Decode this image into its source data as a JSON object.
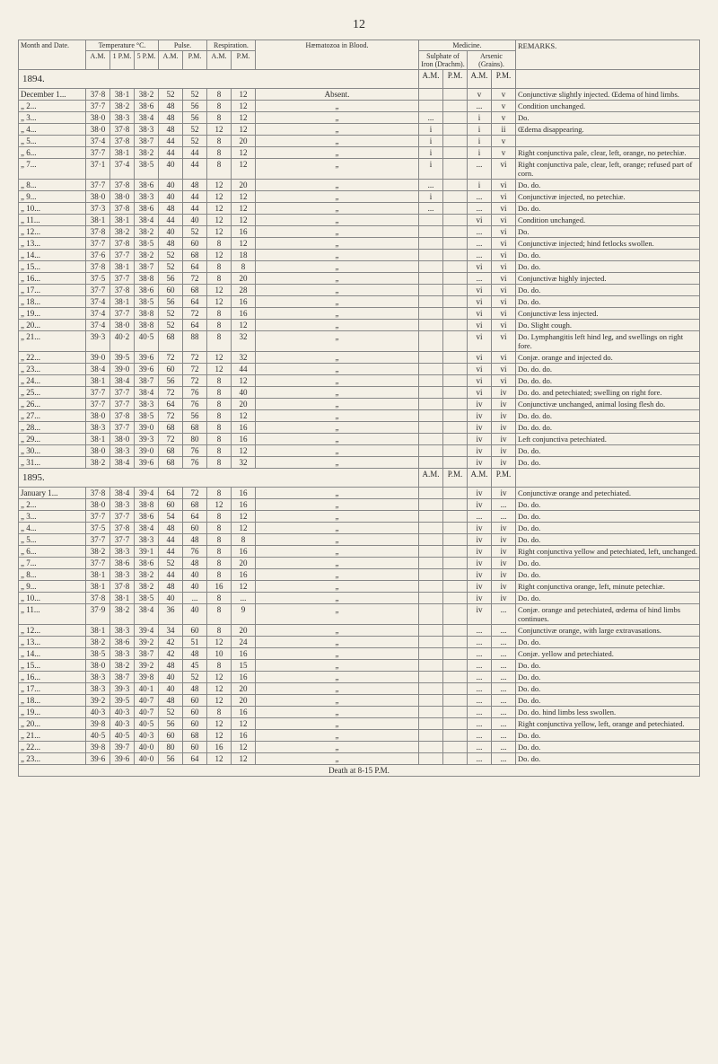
{
  "pagenum": "12",
  "headers": {
    "month": "Month and Date.",
    "temp": "Temperature °C.",
    "pulse": "Pulse.",
    "resp": "Respiration.",
    "haem": "Hæmatozoa in Blood.",
    "med": "Medicine.",
    "sulph": "Sulphate of Iron (Drachm).",
    "ars": "Arsenic (Grains).",
    "rem": "REMARKS.",
    "am": "A.M.",
    "pm1": "1 P.M.",
    "pm5": "5 P.M.",
    "pm": "P.M."
  },
  "year1": "1894.",
  "year2": "1895.",
  "rows1": [
    {
      "d": "December 1...",
      "t": [
        "37·8",
        "38·1",
        "38·2"
      ],
      "p": [
        "52",
        "52"
      ],
      "r": [
        "8",
        "12"
      ],
      "h": "Absent.",
      "s": "",
      "a": "v",
      "g": "v",
      "rem": "Conjunctivæ slightly injected. Œdema of hind limbs."
    },
    {
      "d": "„ 2...",
      "t": [
        "37·7",
        "38·2",
        "38·6"
      ],
      "p": [
        "48",
        "56"
      ],
      "r": [
        "8",
        "12"
      ],
      "h": "„",
      "s": "",
      "a": "...",
      "g": "v",
      "rem": "Condition unchanged."
    },
    {
      "d": "„ 3...",
      "t": [
        "38·0",
        "38·3",
        "38·4"
      ],
      "p": [
        "48",
        "56"
      ],
      "r": [
        "8",
        "12"
      ],
      "h": "„",
      "s": "...",
      "a": "i",
      "g": "v",
      "rem": "Do."
    },
    {
      "d": "„ 4...",
      "t": [
        "38·0",
        "37·8",
        "38·3"
      ],
      "p": [
        "48",
        "52"
      ],
      "r": [
        "12",
        "12"
      ],
      "h": "„",
      "s": "i",
      "a": "i",
      "g": "ii",
      "rem": "Œdema disappearing."
    },
    {
      "d": "„ 5...",
      "t": [
        "37·4",
        "37·8",
        "38·7"
      ],
      "p": [
        "44",
        "52"
      ],
      "r": [
        "8",
        "20"
      ],
      "h": "„",
      "s": "i",
      "a": "i",
      "g": "v",
      "rem": ""
    },
    {
      "d": "„ 6...",
      "t": [
        "37·7",
        "38·1",
        "38·2"
      ],
      "p": [
        "44",
        "44"
      ],
      "r": [
        "8",
        "12"
      ],
      "h": "„",
      "s": "i",
      "a": "i",
      "g": "v",
      "rem": "Right conjunctiva pale, clear, left, orange, no petechiæ."
    },
    {
      "d": "„ 7...",
      "t": [
        "37·1",
        "37·4",
        "38·5"
      ],
      "p": [
        "40",
        "44"
      ],
      "r": [
        "8",
        "12"
      ],
      "h": "„",
      "s": "i",
      "a": "...",
      "g": "vi",
      "rem": "Right conjunctiva pale, clear, left, orange; refused part of corn."
    },
    {
      "d": "„ 8...",
      "t": [
        "37·7",
        "37·8",
        "38·6"
      ],
      "p": [
        "40",
        "48"
      ],
      "r": [
        "12",
        "20"
      ],
      "h": "„",
      "s": "...",
      "a": "i",
      "g": "vi",
      "rem": "Do. do."
    },
    {
      "d": "„ 9...",
      "t": [
        "38·0",
        "38·0",
        "38·3"
      ],
      "p": [
        "40",
        "44"
      ],
      "r": [
        "12",
        "12"
      ],
      "h": "„",
      "s": "i",
      "a": "...",
      "g": "vi",
      "rem": "Conjunctivæ injected, no petechiæ."
    },
    {
      "d": "„ 10...",
      "t": [
        "37·3",
        "37·8",
        "38·6"
      ],
      "p": [
        "48",
        "44"
      ],
      "r": [
        "12",
        "12"
      ],
      "h": "„",
      "s": "...",
      "a": "...",
      "g": "vi",
      "rem": "Do. do."
    },
    {
      "d": "„ 11...",
      "t": [
        "38·1",
        "38·1",
        "38·4"
      ],
      "p": [
        "44",
        "40"
      ],
      "r": [
        "12",
        "12"
      ],
      "h": "„",
      "s": "",
      "a": "vi",
      "g": "vi",
      "rem": "Condition unchanged."
    },
    {
      "d": "„ 12...",
      "t": [
        "37·8",
        "38·2",
        "38·2"
      ],
      "p": [
        "40",
        "52"
      ],
      "r": [
        "12",
        "16"
      ],
      "h": "„",
      "s": "",
      "a": "...",
      "g": "vi",
      "rem": "Do."
    },
    {
      "d": "„ 13...",
      "t": [
        "37·7",
        "37·8",
        "38·5"
      ],
      "p": [
        "48",
        "60"
      ],
      "r": [
        "8",
        "12"
      ],
      "h": "„",
      "s": "",
      "a": "...",
      "g": "vi",
      "rem": "Conjunctivæ injected; hind fetlocks swollen."
    },
    {
      "d": "„ 14...",
      "t": [
        "37·6",
        "37·7",
        "38·2"
      ],
      "p": [
        "52",
        "68"
      ],
      "r": [
        "12",
        "18"
      ],
      "h": "„",
      "s": "",
      "a": "...",
      "g": "vi",
      "rem": "Do. do."
    },
    {
      "d": "„ 15...",
      "t": [
        "37·8",
        "38·1",
        "38·7"
      ],
      "p": [
        "52",
        "64"
      ],
      "r": [
        "8",
        "8"
      ],
      "h": "„",
      "s": "",
      "a": "vi",
      "g": "vi",
      "rem": "Do. do."
    },
    {
      "d": "„ 16...",
      "t": [
        "37·5",
        "37·7",
        "38·8"
      ],
      "p": [
        "56",
        "72"
      ],
      "r": [
        "8",
        "20"
      ],
      "h": "„",
      "s": "",
      "a": "...",
      "g": "vi",
      "rem": "Conjunctivæ highly injected."
    },
    {
      "d": "„ 17...",
      "t": [
        "37·7",
        "37·8",
        "38·6"
      ],
      "p": [
        "60",
        "68"
      ],
      "r": [
        "12",
        "28"
      ],
      "h": "„",
      "s": "",
      "a": "vi",
      "g": "vi",
      "rem": "Do. do."
    },
    {
      "d": "„ 18...",
      "t": [
        "37·4",
        "38·1",
        "38·5"
      ],
      "p": [
        "56",
        "64"
      ],
      "r": [
        "12",
        "16"
      ],
      "h": "„",
      "s": "",
      "a": "vi",
      "g": "vi",
      "rem": "Do. do."
    },
    {
      "d": "„ 19...",
      "t": [
        "37·4",
        "37·7",
        "38·8"
      ],
      "p": [
        "52",
        "72"
      ],
      "r": [
        "8",
        "16"
      ],
      "h": "„",
      "s": "",
      "a": "vi",
      "g": "vi",
      "rem": "Conjunctivæ less injected."
    },
    {
      "d": "„ 20...",
      "t": [
        "37·4",
        "38·0",
        "38·8"
      ],
      "p": [
        "52",
        "64"
      ],
      "r": [
        "8",
        "12"
      ],
      "h": "„",
      "s": "",
      "a": "vi",
      "g": "vi",
      "rem": "Do. Slight cough."
    },
    {
      "d": "„ 21...",
      "t": [
        "39·3",
        "40·2",
        "40·5"
      ],
      "p": [
        "68",
        "88"
      ],
      "r": [
        "8",
        "32"
      ],
      "h": "„",
      "s": "",
      "a": "vi",
      "g": "vi",
      "rem": "Do. Lymphangitis left hind leg, and swellings on right fore."
    },
    {
      "d": "„ 22...",
      "t": [
        "39·0",
        "39·5",
        "39·6"
      ],
      "p": [
        "72",
        "72"
      ],
      "r": [
        "12",
        "32"
      ],
      "h": "„",
      "s": "",
      "a": "vi",
      "g": "vi",
      "rem": "Conjæ. orange and injected do."
    },
    {
      "d": "„ 23...",
      "t": [
        "38·4",
        "39·0",
        "39·6"
      ],
      "p": [
        "60",
        "72"
      ],
      "r": [
        "12",
        "44"
      ],
      "h": "„",
      "s": "",
      "a": "vi",
      "g": "vi",
      "rem": "Do. do. do."
    },
    {
      "d": "„ 24...",
      "t": [
        "38·1",
        "38·4",
        "38·7"
      ],
      "p": [
        "56",
        "72"
      ],
      "r": [
        "8",
        "12"
      ],
      "h": "„",
      "s": "",
      "a": "vi",
      "g": "vi",
      "rem": "Do. do. do."
    },
    {
      "d": "„ 25...",
      "t": [
        "37·7",
        "37·7",
        "38·4"
      ],
      "p": [
        "72",
        "76"
      ],
      "r": [
        "8",
        "40"
      ],
      "h": "„",
      "s": "",
      "a": "vi",
      "g": "iv",
      "rem": "Do. do. and petechiated; swelling on right fore."
    },
    {
      "d": "„ 26...",
      "t": [
        "37·7",
        "37·7",
        "38·3"
      ],
      "p": [
        "64",
        "76"
      ],
      "r": [
        "8",
        "20"
      ],
      "h": "„",
      "s": "",
      "a": "iv",
      "g": "iv",
      "rem": "Conjunctivæ unchanged, animal losing flesh do."
    },
    {
      "d": "„ 27...",
      "t": [
        "38·0",
        "37·8",
        "38·5"
      ],
      "p": [
        "72",
        "56"
      ],
      "r": [
        "8",
        "12"
      ],
      "h": "„",
      "s": "",
      "a": "iv",
      "g": "iv",
      "rem": "Do. do. do."
    },
    {
      "d": "„ 28...",
      "t": [
        "38·3",
        "37·7",
        "39·0"
      ],
      "p": [
        "68",
        "68"
      ],
      "r": [
        "8",
        "16"
      ],
      "h": "„",
      "s": "",
      "a": "iv",
      "g": "iv",
      "rem": "Do. do. do."
    },
    {
      "d": "„ 29...",
      "t": [
        "38·1",
        "38·0",
        "39·3"
      ],
      "p": [
        "72",
        "80"
      ],
      "r": [
        "8",
        "16"
      ],
      "h": "„",
      "s": "",
      "a": "iv",
      "g": "iv",
      "rem": "Left conjunctiva petechiated."
    },
    {
      "d": "„ 30...",
      "t": [
        "38·0",
        "38·3",
        "39·0"
      ],
      "p": [
        "68",
        "76"
      ],
      "r": [
        "8",
        "12"
      ],
      "h": "„",
      "s": "",
      "a": "iv",
      "g": "iv",
      "rem": "Do. do."
    },
    {
      "d": "„ 31...",
      "t": [
        "38·2",
        "38·4",
        "39·6"
      ],
      "p": [
        "68",
        "76"
      ],
      "r": [
        "8",
        "32"
      ],
      "h": "„",
      "s": "",
      "a": "iv",
      "g": "iv",
      "rem": "Do. do."
    }
  ],
  "rows2": [
    {
      "d": "January 1...",
      "t": [
        "37·8",
        "38·4",
        "39·4"
      ],
      "p": [
        "64",
        "72"
      ],
      "r": [
        "8",
        "16"
      ],
      "h": "„",
      "s": "",
      "a": "iv",
      "g": "iv",
      "rem": "Conjunctivæ orange and petechiated."
    },
    {
      "d": "„ 2...",
      "t": [
        "38·0",
        "38·3",
        "38·8"
      ],
      "p": [
        "60",
        "68"
      ],
      "r": [
        "12",
        "16"
      ],
      "h": "„",
      "s": "",
      "a": "iv",
      "g": "...",
      "rem": "Do. do."
    },
    {
      "d": "„ 3...",
      "t": [
        "37·7",
        "37·7",
        "38·6"
      ],
      "p": [
        "54",
        "64"
      ],
      "r": [
        "8",
        "12"
      ],
      "h": "„",
      "s": "",
      "a": "...",
      "g": "...",
      "rem": "Do. do."
    },
    {
      "d": "„ 4...",
      "t": [
        "37·5",
        "37·8",
        "38·4"
      ],
      "p": [
        "48",
        "60"
      ],
      "r": [
        "8",
        "12"
      ],
      "h": "„",
      "s": "",
      "a": "iv",
      "g": "iv",
      "rem": "Do. do."
    },
    {
      "d": "„ 5...",
      "t": [
        "37·7",
        "37·7",
        "38·3"
      ],
      "p": [
        "44",
        "48"
      ],
      "r": [
        "8",
        "8"
      ],
      "h": "„",
      "s": "",
      "a": "iv",
      "g": "iv",
      "rem": "Do. do."
    },
    {
      "d": "„ 6...",
      "t": [
        "38·2",
        "38·3",
        "39·1"
      ],
      "p": [
        "44",
        "76"
      ],
      "r": [
        "8",
        "16"
      ],
      "h": "„",
      "s": "",
      "a": "iv",
      "g": "iv",
      "rem": "Right conjunctiva yellow and petechiated, left, unchanged."
    },
    {
      "d": "„ 7...",
      "t": [
        "37·7",
        "38·6",
        "38·6"
      ],
      "p": [
        "52",
        "48"
      ],
      "r": [
        "8",
        "20"
      ],
      "h": "„",
      "s": "",
      "a": "iv",
      "g": "iv",
      "rem": "Do. do."
    },
    {
      "d": "„ 8...",
      "t": [
        "38·1",
        "38·3",
        "38·2"
      ],
      "p": [
        "44",
        "40"
      ],
      "r": [
        "8",
        "16"
      ],
      "h": "„",
      "s": "",
      "a": "iv",
      "g": "iv",
      "rem": "Do. do."
    },
    {
      "d": "„ 9...",
      "t": [
        "38·1",
        "37·8",
        "38·2"
      ],
      "p": [
        "48",
        "40"
      ],
      "r": [
        "16",
        "12"
      ],
      "h": "„",
      "s": "",
      "a": "iv",
      "g": "iv",
      "rem": "Right conjunctiva orange, left, minute petechiæ."
    },
    {
      "d": "„ 10...",
      "t": [
        "37·8",
        "38·1",
        "38·5"
      ],
      "p": [
        "40",
        "..."
      ],
      "r": [
        "8",
        "..."
      ],
      "h": "„",
      "s": "",
      "a": "iv",
      "g": "iv",
      "rem": "Do. do."
    },
    {
      "d": "„ 11...",
      "t": [
        "37·9",
        "38·2",
        "38·4"
      ],
      "p": [
        "36",
        "40"
      ],
      "r": [
        "8",
        "9"
      ],
      "h": "„",
      "s": "",
      "a": "iv",
      "g": "...",
      "rem": "Conjæ. orange and petechiated, œdema of hind limbs continues."
    },
    {
      "d": "„ 12...",
      "t": [
        "38·1",
        "38·3",
        "39·4"
      ],
      "p": [
        "34",
        "60"
      ],
      "r": [
        "8",
        "20"
      ],
      "h": "„",
      "s": "",
      "a": "...",
      "g": "...",
      "rem": "Conjunctivæ orange, with large extravasations."
    },
    {
      "d": "„ 13...",
      "t": [
        "38·2",
        "38·6",
        "39·2"
      ],
      "p": [
        "42",
        "51"
      ],
      "r": [
        "12",
        "24"
      ],
      "h": "„",
      "s": "",
      "a": "...",
      "g": "...",
      "rem": "Do. do."
    },
    {
      "d": "„ 14...",
      "t": [
        "38·5",
        "38·3",
        "38·7"
      ],
      "p": [
        "42",
        "48"
      ],
      "r": [
        "10",
        "16"
      ],
      "h": "„",
      "s": "",
      "a": "...",
      "g": "...",
      "rem": "Conjæ. yellow and petechiated."
    },
    {
      "d": "„ 15...",
      "t": [
        "38·0",
        "38·2",
        "39·2"
      ],
      "p": [
        "48",
        "45"
      ],
      "r": [
        "8",
        "15"
      ],
      "h": "„",
      "s": "",
      "a": "...",
      "g": "...",
      "rem": "Do. do."
    },
    {
      "d": "„ 16...",
      "t": [
        "38·3",
        "38·7",
        "39·8"
      ],
      "p": [
        "40",
        "52"
      ],
      "r": [
        "12",
        "16"
      ],
      "h": "„",
      "s": "",
      "a": "...",
      "g": "...",
      "rem": "Do. do."
    },
    {
      "d": "„ 17...",
      "t": [
        "38·3",
        "39·3",
        "40·1"
      ],
      "p": [
        "40",
        "48"
      ],
      "r": [
        "12",
        "20"
      ],
      "h": "„",
      "s": "",
      "a": "...",
      "g": "...",
      "rem": "Do. do."
    },
    {
      "d": "„ 18...",
      "t": [
        "39·2",
        "39·5",
        "40·7"
      ],
      "p": [
        "48",
        "60"
      ],
      "r": [
        "12",
        "20"
      ],
      "h": "„",
      "s": "",
      "a": "...",
      "g": "...",
      "rem": "Do. do."
    },
    {
      "d": "„ 19...",
      "t": [
        "40·3",
        "40·3",
        "40·7"
      ],
      "p": [
        "52",
        "60"
      ],
      "r": [
        "8",
        "16"
      ],
      "h": "„",
      "s": "",
      "a": "...",
      "g": "...",
      "rem": "Do. do. hind limbs less swollen."
    },
    {
      "d": "„ 20...",
      "t": [
        "39·8",
        "40·3",
        "40·5"
      ],
      "p": [
        "56",
        "60"
      ],
      "r": [
        "12",
        "12"
      ],
      "h": "„",
      "s": "",
      "a": "...",
      "g": "...",
      "rem": "Right conjunctiva yellow, left, orange and petechiated."
    },
    {
      "d": "„ 21...",
      "t": [
        "40·5",
        "40·5",
        "40·3"
      ],
      "p": [
        "60",
        "68"
      ],
      "r": [
        "12",
        "16"
      ],
      "h": "„",
      "s": "",
      "a": "...",
      "g": "...",
      "rem": "Do. do."
    },
    {
      "d": "„ 22...",
      "t": [
        "39·8",
        "39·7",
        "40·0"
      ],
      "p": [
        "80",
        "60"
      ],
      "r": [
        "16",
        "12"
      ],
      "h": "„",
      "s": "",
      "a": "...",
      "g": "...",
      "rem": "Do. do."
    },
    {
      "d": "„ 23...",
      "t": [
        "39·6",
        "39·6",
        "40·0"
      ],
      "p": [
        "56",
        "64"
      ],
      "r": [
        "12",
        "12"
      ],
      "h": "„",
      "s": "",
      "a": "...",
      "g": "...",
      "rem": "Do. do."
    }
  ],
  "death": "Death at 8-15 P.M."
}
